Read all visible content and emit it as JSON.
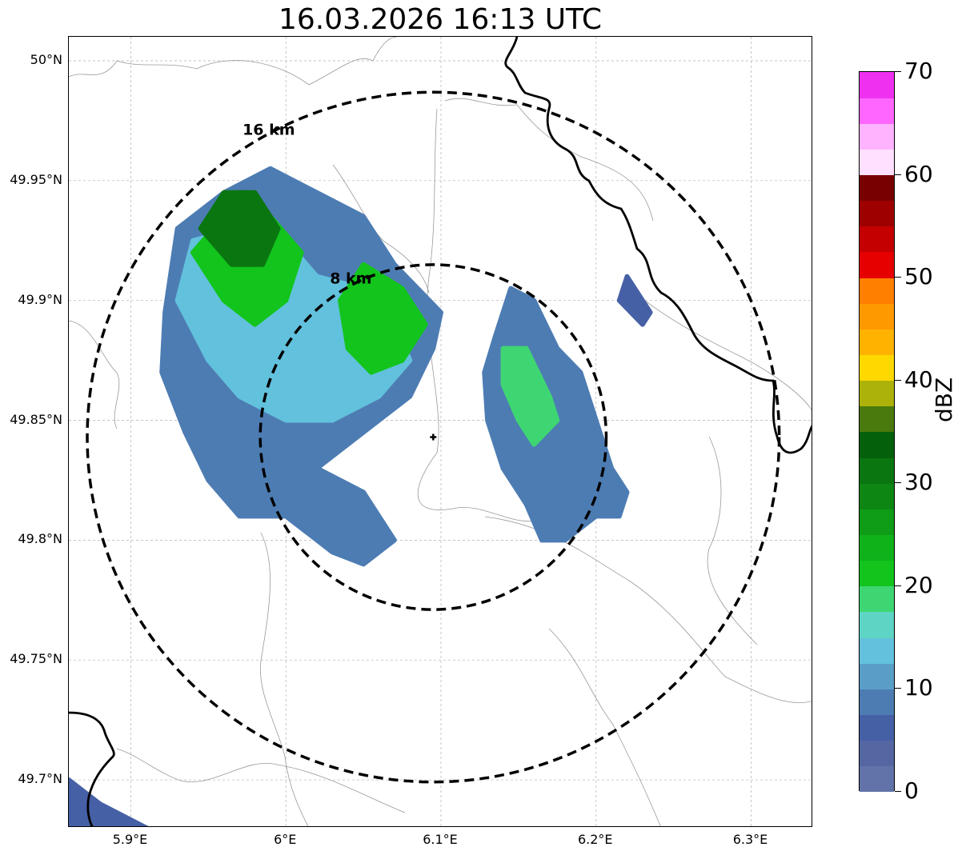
{
  "title": "16.03.2026 16:13 UTC",
  "map": {
    "lon_range": [
      5.86,
      6.34
    ],
    "lat_range": [
      49.68,
      50.01
    ],
    "lat_ticks": [
      {
        "value": 50.0,
        "label": "50°N"
      },
      {
        "value": 49.95,
        "label": "49.95°N"
      },
      {
        "value": 49.9,
        "label": "49.9°N"
      },
      {
        "value": 49.85,
        "label": "49.85°N"
      },
      {
        "value": 49.8,
        "label": "49.8°N"
      },
      {
        "value": 49.75,
        "label": "49.75°N"
      },
      {
        "value": 49.7,
        "label": "49.7°N"
      }
    ],
    "lon_ticks": [
      {
        "value": 5.9,
        "label": "5.9°E"
      },
      {
        "value": 6.0,
        "label": "6°E"
      },
      {
        "value": 6.1,
        "label": "6.1°E"
      },
      {
        "value": 6.2,
        "label": "6.2°E"
      },
      {
        "value": 6.3,
        "label": "6.3°E"
      }
    ],
    "radar_site": {
      "lon": 6.095,
      "lat": 49.843
    },
    "range_rings": [
      {
        "label": "8 km",
        "radius_km": 8
      },
      {
        "label": "16 km",
        "radius_km": 16
      }
    ],
    "grid": true,
    "echo_cells": [
      {
        "name": "west-cell",
        "dbz": 8,
        "polygon": [
          [
            5.922,
            49.895
          ],
          [
            5.93,
            49.93
          ],
          [
            5.96,
            49.945
          ],
          [
            5.99,
            49.955
          ],
          [
            6.02,
            49.945
          ],
          [
            6.05,
            49.935
          ],
          [
            6.07,
            49.915
          ],
          [
            6.1,
            49.895
          ],
          [
            6.095,
            49.88
          ],
          [
            6.08,
            49.86
          ],
          [
            6.06,
            49.85
          ],
          [
            6.04,
            49.84
          ],
          [
            6.02,
            49.83
          ],
          [
            6.05,
            49.82
          ],
          [
            6.07,
            49.8
          ],
          [
            6.05,
            49.79
          ],
          [
            6.03,
            49.795
          ],
          [
            6.0,
            49.81
          ],
          [
            5.97,
            49.81
          ],
          [
            5.95,
            49.825
          ],
          [
            5.935,
            49.845
          ],
          [
            5.92,
            49.87
          ]
        ]
      },
      {
        "name": "west-cell-core-a",
        "dbz": 14,
        "polygon": [
          [
            5.93,
            49.9
          ],
          [
            5.94,
            49.925
          ],
          [
            5.97,
            49.93
          ],
          [
            6.0,
            49.925
          ],
          [
            6.02,
            49.91
          ],
          [
            6.05,
            49.905
          ],
          [
            6.07,
            49.89
          ],
          [
            6.08,
            49.875
          ],
          [
            6.06,
            49.86
          ],
          [
            6.03,
            49.85
          ],
          [
            6.0,
            49.85
          ],
          [
            5.97,
            49.86
          ],
          [
            5.95,
            49.875
          ]
        ]
      },
      {
        "name": "west-cell-core-b",
        "dbz": 22,
        "polygon": [
          [
            5.94,
            49.92
          ],
          [
            5.96,
            49.935
          ],
          [
            5.99,
            49.935
          ],
          [
            6.01,
            49.92
          ],
          [
            6.0,
            49.9
          ],
          [
            5.98,
            49.89
          ],
          [
            5.96,
            49.9
          ]
        ]
      },
      {
        "name": "west-cell-core-c",
        "dbz": 22,
        "polygon": [
          [
            6.035,
            49.9
          ],
          [
            6.05,
            49.915
          ],
          [
            6.075,
            49.905
          ],
          [
            6.09,
            49.89
          ],
          [
            6.075,
            49.875
          ],
          [
            6.055,
            49.87
          ],
          [
            6.04,
            49.88
          ]
        ]
      },
      {
        "name": "west-cell-core-d",
        "dbz": 32,
        "polygon": [
          [
            5.945,
            49.93
          ],
          [
            5.96,
            49.945
          ],
          [
            5.98,
            49.945
          ],
          [
            5.995,
            49.93
          ],
          [
            5.985,
            49.915
          ],
          [
            5.965,
            49.915
          ]
        ]
      },
      {
        "name": "east-cell",
        "dbz": 8,
        "polygon": [
          [
            6.135,
            49.885
          ],
          [
            6.145,
            49.905
          ],
          [
            6.16,
            49.9
          ],
          [
            6.175,
            49.88
          ],
          [
            6.19,
            49.87
          ],
          [
            6.2,
            49.85
          ],
          [
            6.21,
            49.83
          ],
          [
            6.22,
            49.82
          ],
          [
            6.215,
            49.81
          ],
          [
            6.2,
            49.81
          ],
          [
            6.18,
            49.8
          ],
          [
            6.165,
            49.8
          ],
          [
            6.155,
            49.815
          ],
          [
            6.14,
            49.83
          ],
          [
            6.13,
            49.85
          ],
          [
            6.128,
            49.87
          ]
        ]
      },
      {
        "name": "east-cell-core",
        "dbz": 18,
        "polygon": [
          [
            6.14,
            49.88
          ],
          [
            6.155,
            49.88
          ],
          [
            6.17,
            49.86
          ],
          [
            6.175,
            49.85
          ],
          [
            6.16,
            49.84
          ],
          [
            6.15,
            49.85
          ],
          [
            6.14,
            49.865
          ]
        ]
      },
      {
        "name": "ne-cell",
        "dbz": 5,
        "polygon": [
          [
            6.215,
            49.9
          ],
          [
            6.22,
            49.91
          ],
          [
            6.235,
            49.895
          ],
          [
            6.23,
            49.89
          ]
        ]
      },
      {
        "name": "sw-cell",
        "dbz": 5,
        "polygon": [
          [
            5.86,
            49.7
          ],
          [
            5.88,
            49.69
          ],
          [
            5.91,
            49.68
          ],
          [
            5.86,
            49.68
          ]
        ]
      }
    ]
  },
  "colorbar": {
    "label": "dBZ",
    "min": 0,
    "max": 70,
    "step": 2.5,
    "tick_labels": [
      "0",
      "10",
      "20",
      "30",
      "40",
      "50",
      "60",
      "70"
    ],
    "tick_values": [
      0,
      10,
      20,
      30,
      40,
      50,
      60,
      70
    ],
    "colors": [
      "#6173a8",
      "#5567a3",
      "#4660a6",
      "#4d7cb3",
      "#5a9ec8",
      "#62c1dc",
      "#5ed5c4",
      "#3ed672",
      "#12c41c",
      "#10b21a",
      "#0f9c17",
      "#0d8613",
      "#0a7610",
      "#05600b",
      "#4a7a0e",
      "#adb20a",
      "#ffd800",
      "#ffb300",
      "#ff9900",
      "#ff7f00",
      "#e60000",
      "#c40000",
      "#9e0000",
      "#780000",
      "#ffe0ff",
      "#ffb3ff",
      "#ff66ff",
      "#f030f0"
    ]
  }
}
